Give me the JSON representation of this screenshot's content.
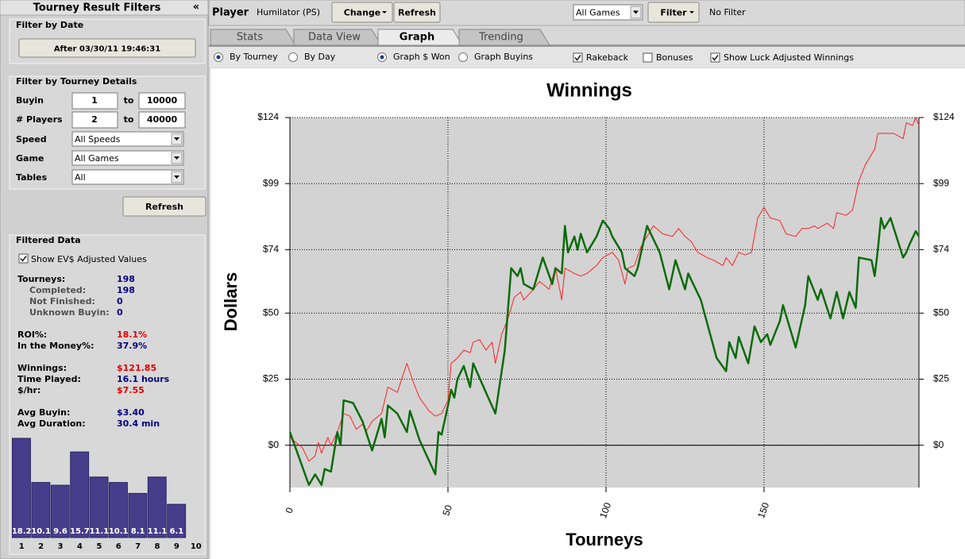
{
  "sidebar": {
    "title": "Tourney Result Filters",
    "collapse": "«",
    "date_section": {
      "title": "Filter by Date",
      "button": "After 03/30/11 19:46:31"
    },
    "details_section": {
      "title": "Filter by Tourney Details",
      "ranges": [
        {
          "label": "Buyin",
          "from": "1",
          "sep": "to",
          "to": "10000"
        },
        {
          "label": "# Players",
          "from": "2",
          "sep": "to",
          "to": "40000"
        }
      ],
      "selects": [
        {
          "label": "Speed",
          "value": "All Speeds"
        },
        {
          "label": "Game",
          "value": "All Games"
        },
        {
          "label": "Tables",
          "value": "All"
        }
      ],
      "button": "Refresh"
    },
    "filtered_section": {
      "title": "Filtered Data",
      "checkbox": {
        "label": "Show EV$ Adjusted Values",
        "checked": true
      },
      "groups": [
        [
          {
            "label": "Tourneys:",
            "value": "198",
            "color": "#000080"
          },
          {
            "label": "Completed:",
            "value": "198",
            "color": "#000080",
            "indent": true
          },
          {
            "label": "Not Finished:",
            "value": "0",
            "color": "#000080",
            "indent": true
          },
          {
            "label": "Unknown Buyin:",
            "value": "0",
            "color": "#000080",
            "indent": true
          }
        ],
        [
          {
            "label": "ROI%:",
            "value": "18.1%",
            "color": "#e00000"
          },
          {
            "label": "In the Money%:",
            "value": "37.9%",
            "color": "#000080"
          }
        ],
        [
          {
            "label": "Winnings:",
            "value": "$121.85",
            "color": "#e00000"
          },
          {
            "label": "Time Played:",
            "value": "16.1 hours",
            "color": "#000080"
          },
          {
            "label": "$/hr:",
            "value": "$7.55",
            "color": "#e00000"
          }
        ],
        [
          {
            "label": "Avg Buyin:",
            "value": "$3.40",
            "color": "#000080"
          },
          {
            "label": "Avg Duration:",
            "value": "30.4 min",
            "color": "#000080"
          }
        ]
      ]
    }
  },
  "toolbar": {
    "player_label": "Player",
    "player": "Humilator (PS)",
    "change": "Change",
    "refresh": "Refresh",
    "game_select": "All Games",
    "filter": "Filter",
    "filter_status": "No Filter"
  },
  "tabs": {
    "items": [
      "Stats",
      "Data View",
      "Graph",
      "Trending"
    ],
    "active": 2
  },
  "options": {
    "radios": [
      {
        "label": "By Tourney",
        "checked": true
      },
      {
        "label": "By Day",
        "checked": false
      },
      {
        "label": "Graph $ Won",
        "checked": true
      },
      {
        "label": "Graph Buyins",
        "checked": false
      }
    ],
    "checkboxes": [
      {
        "label": "Rakeback",
        "checked": true
      },
      {
        "label": "Bonuses",
        "checked": false
      },
      {
        "label": "Show Luck Adjusted Winnings",
        "checked": true
      }
    ]
  },
  "chart_data": [
    {
      "type": "line",
      "title": "Winnings",
      "ylabel": "Dollars",
      "xlabel": "Tourneys",
      "xlim": [
        0,
        199
      ],
      "xticks": [
        0,
        50,
        100,
        150
      ],
      "ylim": [
        -16,
        124
      ],
      "yticks": [
        {
          "value": 124,
          "label": "$124"
        },
        {
          "value": 99,
          "label": "$99"
        },
        {
          "value": 74,
          "label": "$74"
        },
        {
          "value": 50,
          "label": "$50"
        },
        {
          "value": 25,
          "label": "$25"
        },
        {
          "value": 0,
          "label": "$0"
        }
      ],
      "grid": true,
      "series": [
        {
          "color": "#ff2020",
          "width": 1,
          "x": [
            0,
            4,
            6,
            8,
            9,
            10,
            12,
            13,
            15,
            17,
            19,
            21,
            23,
            24,
            26,
            29,
            31,
            34,
            37,
            39,
            41,
            44,
            46,
            48,
            50,
            51,
            53,
            55,
            57,
            58,
            60,
            62,
            64,
            65,
            67,
            69,
            71,
            73,
            74,
            77,
            79,
            82,
            84,
            86,
            87,
            90,
            92,
            94,
            97,
            99,
            102,
            104,
            106,
            107,
            109,
            111,
            113,
            115,
            118,
            121,
            123,
            125,
            127,
            129,
            132,
            134,
            137,
            138,
            140,
            142,
            144,
            146,
            148,
            150,
            152,
            155,
            157,
            160,
            162,
            164,
            166,
            167,
            170,
            172,
            173,
            176,
            178,
            180,
            182,
            185,
            186,
            188,
            191,
            194,
            195,
            197,
            198,
            199
          ],
          "values": [
            3,
            -1,
            -6,
            -4,
            1,
            -3,
            3,
            0,
            5,
            12,
            11,
            6,
            8,
            5,
            9,
            12,
            22,
            20,
            31,
            24,
            18,
            13,
            11,
            12,
            17,
            31,
            33,
            36,
            35,
            39,
            40,
            36,
            39,
            31,
            42,
            48,
            56,
            58,
            55,
            59,
            62,
            59,
            67,
            55,
            67,
            65,
            64,
            65,
            68,
            71,
            73,
            70,
            61,
            67,
            68,
            75,
            79,
            83,
            80,
            79,
            82,
            79,
            77,
            73,
            71,
            70,
            68,
            71,
            68,
            73,
            72,
            73,
            86,
            90,
            86,
            85,
            80,
            79,
            82,
            82,
            83,
            82,
            84,
            82,
            88,
            87,
            89,
            100,
            106,
            112,
            118,
            118,
            118,
            116,
            122,
            121,
            124,
            121
          ]
        },
        {
          "color": "#0b6b0b",
          "width": 2.5,
          "x": [
            0,
            6,
            8,
            10,
            11,
            13,
            15,
            16,
            17,
            20,
            23,
            26,
            29,
            30,
            31,
            34,
            37,
            38,
            41,
            46,
            47,
            48,
            50,
            51,
            52,
            53,
            55,
            57,
            58,
            62,
            65,
            68,
            70,
            72,
            73,
            74,
            77,
            80,
            83,
            84,
            86,
            87,
            88,
            90,
            91,
            92,
            94,
            97,
            98,
            99,
            101,
            102,
            105,
            106,
            109,
            110,
            113,
            117,
            120,
            122,
            125,
            126,
            130,
            135,
            138,
            139,
            141,
            142,
            145,
            147,
            149,
            151,
            152,
            155,
            156,
            160,
            163,
            164,
            167,
            168,
            171,
            173,
            175,
            177,
            179,
            180,
            184,
            185,
            186,
            187,
            188,
            190,
            194,
            195,
            196,
            198,
            199
          ],
          "values": [
            5,
            -15,
            -11,
            -15,
            -9,
            -10,
            5,
            0,
            17,
            16,
            9,
            -2,
            10,
            3,
            15,
            12,
            5,
            13,
            2,
            -11,
            5,
            4,
            15,
            21,
            18,
            25,
            30,
            22,
            31,
            20,
            12,
            36,
            67,
            64,
            67,
            61,
            59,
            71,
            61,
            67,
            65,
            83,
            73,
            79,
            74,
            80,
            73,
            79,
            82,
            85,
            82,
            79,
            73,
            67,
            64,
            67,
            83,
            73,
            59,
            70,
            59,
            65,
            55,
            33,
            28,
            39,
            33,
            41,
            31,
            45,
            39,
            42,
            38,
            47,
            53,
            37,
            53,
            64,
            55,
            59,
            48,
            58,
            48,
            58,
            52,
            71,
            70,
            64,
            74,
            86,
            82,
            86,
            71,
            73,
            76,
            81,
            79
          ]
        }
      ]
    },
    {
      "type": "bar",
      "categories": [
        "1",
        "2",
        "3",
        "4",
        "5",
        "6",
        "7",
        "8",
        "9",
        "10"
      ],
      "values": [
        18.2,
        10.1,
        9.6,
        15.7,
        11.1,
        10.1,
        8.1,
        11.1,
        6.1,
        null
      ],
      "color": "#483d8b"
    }
  ]
}
